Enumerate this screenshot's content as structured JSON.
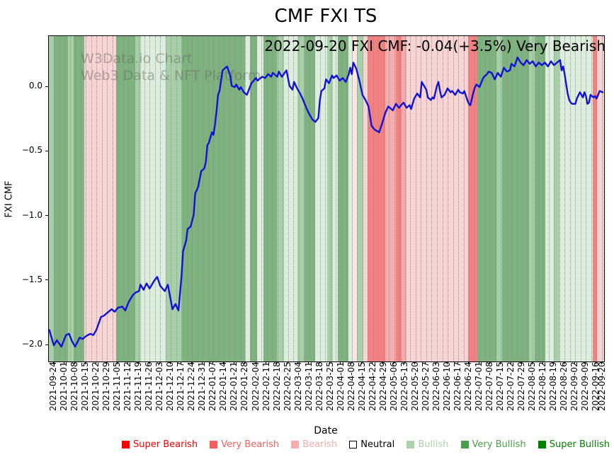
{
  "title": "CMF FXI TS",
  "annotation": "2022-09-20 FXI CMF: -0.04(+3.5%) Very Bearish",
  "watermark": {
    "line1": "W3Data.io Chart",
    "line2": "Web3 Data & NFT Platform"
  },
  "y_axis": {
    "label": "FXI CMF",
    "tick_labels": [
      "0.0",
      "−0.5",
      "−1.0",
      "−1.5",
      "−2.0"
    ],
    "tick_values": [
      0,
      -0.5,
      -1.0,
      -1.5,
      -2.0
    ]
  },
  "x_axis": {
    "label": "Date",
    "tick_dates": [
      "2021-09-24",
      "2021-10-01",
      "2021-10-08",
      "2021-10-15",
      "2021-10-22",
      "2021-10-29",
      "2021-11-05",
      "2021-11-12",
      "2021-11-19",
      "2021-11-26",
      "2021-12-03",
      "2021-12-10",
      "2021-12-17",
      "2021-12-24",
      "2021-12-31",
      "2022-01-07",
      "2022-01-14",
      "2022-01-21",
      "2022-01-28",
      "2022-02-04",
      "2022-02-11",
      "2022-02-18",
      "2022-02-25",
      "2022-03-04",
      "2022-03-11",
      "2022-03-18",
      "2022-03-25",
      "2022-04-01",
      "2022-04-08",
      "2022-04-15",
      "2022-04-22",
      "2022-04-29",
      "2022-05-06",
      "2022-05-13",
      "2022-05-20",
      "2022-05-27",
      "2022-06-03",
      "2022-06-10",
      "2022-06-17",
      "2022-06-24",
      "2022-07-01",
      "2022-07-08",
      "2022-07-15",
      "2022-07-22",
      "2022-07-29",
      "2022-08-05",
      "2022-08-12",
      "2022-08-19",
      "2022-08-26",
      "2022-09-02",
      "2022-09-09",
      "2022-09-16",
      "2022-09-20"
    ],
    "tick_days": [
      0,
      7,
      14,
      21,
      28,
      35,
      42,
      49,
      56,
      63,
      70,
      77,
      84,
      91,
      98,
      105,
      112,
      119,
      126,
      133,
      140,
      147,
      154,
      161,
      168,
      175,
      182,
      189,
      196,
      203,
      210,
      217,
      224,
      231,
      238,
      245,
      252,
      259,
      266,
      273,
      280,
      287,
      294,
      301,
      308,
      315,
      322,
      329,
      336,
      343,
      350,
      357,
      361
    ]
  },
  "legend": {
    "items": [
      {
        "label": "Super Bearish",
        "color": "#ff0000",
        "text_color": "#ff0000",
        "border": ""
      },
      {
        "label": "Very Bearish",
        "color": "#f25f5f",
        "text_color": "#f25f5f",
        "border": ""
      },
      {
        "label": "Bearish",
        "color": "#f6acac",
        "text_color": "#f6acac",
        "border": ""
      },
      {
        "label": "Neutral",
        "color": "#ffffff",
        "text_color": "#000000",
        "border": "#000000"
      },
      {
        "label": "Bullish",
        "color": "#abd3ab",
        "text_color": "#abd3ab",
        "border": ""
      },
      {
        "label": "Very Bullish",
        "color": "#4aa04a",
        "text_color": "#4aa04a",
        "border": ""
      },
      {
        "label": "Super Bullish",
        "color": "#008000",
        "text_color": "#008000",
        "border": ""
      }
    ]
  },
  "band_colors": {
    "very_bearish": "#f48080",
    "bearish_med": "#f7adad",
    "bearish": "#f9d4d4",
    "bearish_light": "#fce6e6",
    "bullish_light": "#deeede",
    "bullish": "#a8d0a8",
    "very_bullish": "#7eb27e"
  },
  "line_color": "#1111d6",
  "chart_data": {
    "type": "line",
    "title": "CMF FXI TS",
    "xlabel": "Date",
    "ylabel": "FXI CMF",
    "x_start": "2021-09-24",
    "x_end": "2022-09-20",
    "x_unit": "days_since_2021-09-24",
    "ylim": [
      -2.125,
      0.395
    ],
    "grid": "vertical-dotted",
    "legend_position": "bottom",
    "series": [
      {
        "name": "FXI CMF",
        "points": [
          [
            -3,
            -1.88
          ],
          [
            0,
            -2.0
          ],
          [
            2,
            -1.96
          ],
          [
            5,
            -2.01
          ],
          [
            8,
            -1.92
          ],
          [
            10,
            -1.91
          ],
          [
            12,
            -1.97
          ],
          [
            14,
            -2.01
          ],
          [
            17,
            -1.94
          ],
          [
            19,
            -1.95
          ],
          [
            21,
            -1.93
          ],
          [
            24,
            -1.91
          ],
          [
            26,
            -1.92
          ],
          [
            28,
            -1.88
          ],
          [
            31,
            -1.78
          ],
          [
            33,
            -1.77
          ],
          [
            35,
            -1.75
          ],
          [
            38,
            -1.72
          ],
          [
            40,
            -1.74
          ],
          [
            42,
            -1.71
          ],
          [
            45,
            -1.7
          ],
          [
            47,
            -1.73
          ],
          [
            49,
            -1.67
          ],
          [
            52,
            -1.61
          ],
          [
            54,
            -1.59
          ],
          [
            56,
            -1.58
          ],
          [
            57,
            -1.53
          ],
          [
            59,
            -1.57
          ],
          [
            61,
            -1.52
          ],
          [
            63,
            -1.56
          ],
          [
            66,
            -1.5
          ],
          [
            68,
            -1.47
          ],
          [
            70,
            -1.54
          ],
          [
            73,
            -1.58
          ],
          [
            75,
            -1.53
          ],
          [
            78,
            -1.72
          ],
          [
            80,
            -1.68
          ],
          [
            82,
            -1.73
          ],
          [
            84,
            -1.47
          ],
          [
            85,
            -1.27
          ],
          [
            87,
            -1.19
          ],
          [
            88,
            -1.1
          ],
          [
            90,
            -1.08
          ],
          [
            92,
            -0.99
          ],
          [
            93,
            -0.82
          ],
          [
            94,
            -0.8
          ],
          [
            95,
            -0.77
          ],
          [
            97,
            -0.65
          ],
          [
            99,
            -0.63
          ],
          [
            100,
            -0.58
          ],
          [
            101,
            -0.45
          ],
          [
            102,
            -0.43
          ],
          [
            103,
            -0.39
          ],
          [
            104,
            -0.35
          ],
          [
            105,
            -0.37
          ],
          [
            106,
            -0.29
          ],
          [
            107,
            -0.19
          ],
          [
            108,
            -0.06
          ],
          [
            109,
            -0.03
          ],
          [
            111,
            0.13
          ],
          [
            113,
            0.15
          ],
          [
            114,
            0.16
          ],
          [
            116,
            0.09
          ],
          [
            117,
            0.01
          ],
          [
            119,
            0.0
          ],
          [
            120,
            0.02
          ],
          [
            122,
            -0.02
          ],
          [
            123,
            0.0
          ],
          [
            125,
            -0.04
          ],
          [
            127,
            -0.06
          ],
          [
            129,
            0.0
          ],
          [
            130,
            0.03
          ],
          [
            133,
            0.07
          ],
          [
            134,
            0.05
          ],
          [
            137,
            0.08
          ],
          [
            139,
            0.07
          ],
          [
            141,
            0.1
          ],
          [
            143,
            0.08
          ],
          [
            144,
            0.11
          ],
          [
            147,
            0.08
          ],
          [
            148,
            0.12
          ],
          [
            150,
            0.08
          ],
          [
            153,
            0.13
          ],
          [
            155,
            0.01
          ],
          [
            157,
            -0.02
          ],
          [
            158,
            0.04
          ],
          [
            160,
            -0.01
          ],
          [
            162,
            -0.05
          ],
          [
            164,
            -0.1
          ],
          [
            166,
            -0.16
          ],
          [
            168,
            -0.21
          ],
          [
            170,
            -0.25
          ],
          [
            171,
            -0.26
          ],
          [
            172,
            -0.27
          ],
          [
            174,
            -0.24
          ],
          [
            175,
            -0.1
          ],
          [
            176,
            -0.03
          ],
          [
            178,
            -0.01
          ],
          [
            179,
            0.06
          ],
          [
            181,
            0.03
          ],
          [
            183,
            0.09
          ],
          [
            184,
            0.07
          ],
          [
            186,
            0.09
          ],
          [
            188,
            0.05
          ],
          [
            190,
            0.07
          ],
          [
            192,
            0.04
          ],
          [
            194,
            0.1
          ],
          [
            195,
            0.15
          ],
          [
            196,
            0.1
          ],
          [
            197,
            0.19
          ],
          [
            199,
            0.14
          ],
          [
            201,
            0.05
          ],
          [
            203,
            -0.06
          ],
          [
            205,
            -0.1
          ],
          [
            207,
            -0.15
          ],
          [
            209,
            -0.3
          ],
          [
            211,
            -0.33
          ],
          [
            214,
            -0.35
          ],
          [
            216,
            -0.28
          ],
          [
            218,
            -0.2
          ],
          [
            220,
            -0.15
          ],
          [
            223,
            -0.18
          ],
          [
            225,
            -0.13
          ],
          [
            227,
            -0.16
          ],
          [
            230,
            -0.12
          ],
          [
            232,
            -0.16
          ],
          [
            234,
            -0.14
          ],
          [
            235,
            -0.17
          ],
          [
            237,
            -0.09
          ],
          [
            239,
            -0.05
          ],
          [
            241,
            -0.08
          ],
          [
            242,
            0.04
          ],
          [
            245,
            -0.02
          ],
          [
            246,
            -0.08
          ],
          [
            248,
            -0.1
          ],
          [
            249,
            -0.08
          ],
          [
            250,
            -0.09
          ],
          [
            252,
            0.01
          ],
          [
            253,
            0.04
          ],
          [
            254,
            -0.03
          ],
          [
            255,
            -0.08
          ],
          [
            257,
            -0.06
          ],
          [
            259,
            -0.01
          ],
          [
            261,
            -0.04
          ],
          [
            262,
            -0.03
          ],
          [
            264,
            -0.06
          ],
          [
            266,
            -0.02
          ],
          [
            267,
            -0.04
          ],
          [
            269,
            -0.05
          ],
          [
            270,
            -0.03
          ],
          [
            272,
            -0.1
          ],
          [
            273,
            -0.13
          ],
          [
            274,
            -0.14
          ],
          [
            276,
            -0.04
          ],
          [
            277,
            0.0
          ],
          [
            278,
            0.02
          ],
          [
            280,
            0.0
          ],
          [
            282,
            0.06
          ],
          [
            283,
            0.08
          ],
          [
            285,
            0.1
          ],
          [
            286,
            0.12
          ],
          [
            288,
            0.11
          ],
          [
            290,
            0.06
          ],
          [
            292,
            0.11
          ],
          [
            294,
            0.08
          ],
          [
            296,
            0.15
          ],
          [
            298,
            0.12
          ],
          [
            300,
            0.13
          ],
          [
            301,
            0.18
          ],
          [
            303,
            0.16
          ],
          [
            305,
            0.23
          ],
          [
            307,
            0.19
          ],
          [
            309,
            0.17
          ],
          [
            311,
            0.21
          ],
          [
            313,
            0.18
          ],
          [
            315,
            0.2
          ],
          [
            317,
            0.16
          ],
          [
            319,
            0.19
          ],
          [
            321,
            0.17
          ],
          [
            323,
            0.19
          ],
          [
            325,
            0.16
          ],
          [
            327,
            0.2
          ],
          [
            329,
            0.17
          ],
          [
            331,
            0.19
          ],
          [
            333,
            0.21
          ],
          [
            334,
            0.13
          ],
          [
            335,
            0.16
          ],
          [
            336,
            0.1
          ],
          [
            337,
            0.02
          ],
          [
            338,
            -0.05
          ],
          [
            339,
            -0.1
          ],
          [
            340,
            -0.12
          ],
          [
            341,
            -0.13
          ],
          [
            343,
            -0.13
          ],
          [
            344,
            -0.09
          ],
          [
            346,
            -0.04
          ],
          [
            348,
            -0.08
          ],
          [
            349,
            -0.04
          ],
          [
            350,
            -0.07
          ],
          [
            351,
            -0.13
          ],
          [
            352,
            -0.12
          ],
          [
            353,
            -0.06
          ],
          [
            355,
            -0.08
          ],
          [
            356,
            -0.07
          ],
          [
            357,
            -0.09
          ],
          [
            359,
            -0.03
          ],
          [
            361,
            -0.04
          ]
        ]
      }
    ],
    "sentiment_bands": [
      [
        -3.3,
        0,
        "bullish"
      ],
      [
        0,
        9.3,
        "very_bullish"
      ],
      [
        9.3,
        13,
        "bullish"
      ],
      [
        13,
        20,
        "very_bullish"
      ],
      [
        20,
        41,
        "bearish"
      ],
      [
        41,
        53.6,
        "very_bullish"
      ],
      [
        53.6,
        57.3,
        "bullish"
      ],
      [
        57.3,
        73.6,
        "bullish_light"
      ],
      [
        73.6,
        84.3,
        "bullish"
      ],
      [
        84.3,
        125.8,
        "very_bullish"
      ],
      [
        125.8,
        129,
        "bullish_light"
      ],
      [
        129,
        133.7,
        "very_bullish"
      ],
      [
        133.7,
        137.9,
        "bullish_light"
      ],
      [
        137.9,
        146.7,
        "very_bullish"
      ],
      [
        146.7,
        151.4,
        "bullish"
      ],
      [
        151.4,
        160.2,
        "bullish_light"
      ],
      [
        160.2,
        164.9,
        "bullish"
      ],
      [
        164.9,
        171.9,
        "very_bullish"
      ],
      [
        171.9,
        179.8,
        "bullish_light"
      ],
      [
        179.8,
        183.5,
        "bullish"
      ],
      [
        183.5,
        186.8,
        "bullish_light"
      ],
      [
        186.8,
        193.8,
        "very_bullish"
      ],
      [
        193.8,
        196.6,
        "bullish_light"
      ],
      [
        196.6,
        199.4,
        "bearish_light"
      ],
      [
        199.4,
        203.5,
        "bullish"
      ],
      [
        203.5,
        206.4,
        "bearish"
      ],
      [
        206.4,
        218,
        "very_bearish"
      ],
      [
        218,
        225,
        "bearish_med"
      ],
      [
        225,
        228.7,
        "very_bearish"
      ],
      [
        228.7,
        232,
        "bearish_med"
      ],
      [
        232,
        272.5,
        "bearish"
      ],
      [
        272.5,
        278.5,
        "very_bearish"
      ],
      [
        278.5,
        291.1,
        "very_bullish"
      ],
      [
        291.1,
        294.8,
        "bullish"
      ],
      [
        294.8,
        312.5,
        "very_bullish"
      ],
      [
        312.5,
        316.3,
        "bullish"
      ],
      [
        316.3,
        323.2,
        "very_bullish"
      ],
      [
        323.2,
        328.8,
        "bullish_light"
      ],
      [
        328.8,
        332.6,
        "bullish"
      ],
      [
        332.6,
        354.5,
        "bullish_light"
      ],
      [
        354.5,
        357.3,
        "very_bearish"
      ],
      [
        357.3,
        361.9,
        "bearish"
      ]
    ]
  }
}
